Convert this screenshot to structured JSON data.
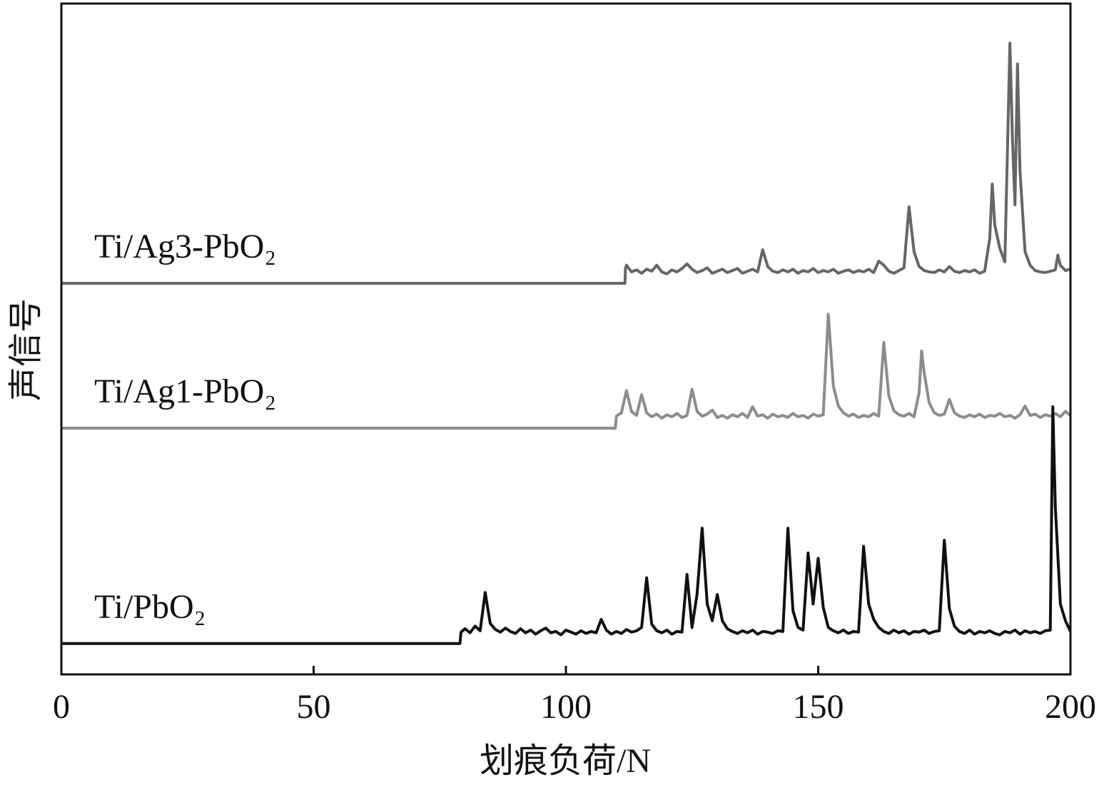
{
  "chart_data": {
    "type": "line",
    "x_label": "划痕负荷/N",
    "y_label": "声信号",
    "xlim": [
      0,
      200
    ],
    "xticks": [
      0,
      50,
      100,
      150,
      200
    ],
    "ylim": [
      0,
      100
    ],
    "series": [
      {
        "name": "Ti/Ag3-PbO₂",
        "color": "#666666",
        "x": [
          0,
          111.7,
          111.8,
          112,
          113,
          114,
          115,
          116,
          117,
          118,
          119,
          120,
          121,
          122,
          123,
          124,
          125,
          126,
          127,
          128,
          129,
          130,
          131,
          132,
          133,
          134,
          135,
          136,
          137,
          138,
          139,
          140,
          141,
          142,
          143,
          144,
          145,
          146,
          147,
          148,
          149,
          150,
          151,
          152,
          153,
          154,
          155,
          156,
          157,
          158,
          159,
          160,
          161,
          162,
          163,
          164,
          165,
          166,
          167,
          168,
          169,
          170,
          171,
          172,
          173,
          174,
          175,
          176,
          177,
          178,
          179,
          180,
          181,
          182,
          183,
          184,
          184.5,
          185,
          186,
          187,
          188,
          188.5,
          189,
          189.5,
          190,
          191,
          192,
          193,
          194,
          195,
          196,
          197,
          197.5,
          198,
          199,
          200
        ],
        "values": [
          58.3,
          58.3,
          60.5,
          61.0,
          60.0,
          60.3,
          59.8,
          60.4,
          60.1,
          61.0,
          60.0,
          59.7,
          60.3,
          60.0,
          60.5,
          61.2,
          60.4,
          59.9,
          60.2,
          60.6,
          59.8,
          60.1,
          60.4,
          59.9,
          60.2,
          60.5,
          59.8,
          60.1,
          60.4,
          60.0,
          63.3,
          60.8,
          60.1,
          59.9,
          60.3,
          60.0,
          60.4,
          59.8,
          60.2,
          60.0,
          60.5,
          59.9,
          60.2,
          60.0,
          60.4,
          59.8,
          60.1,
          60.3,
          59.9,
          60.2,
          60.0,
          60.4,
          59.9,
          61.6,
          61.0,
          60.1,
          59.8,
          60.2,
          60.6,
          69.7,
          63.0,
          60.8,
          60.2,
          60.0,
          59.9,
          60.3,
          60.0,
          60.8,
          60.1,
          59.9,
          60.2,
          60.0,
          60.3,
          59.8,
          60.1,
          65,
          73.1,
          67,
          63.5,
          61.5,
          94.1,
          80,
          70,
          91,
          75,
          63,
          61.0,
          60.2,
          60.0,
          59.9,
          60.1,
          60.3,
          62.5,
          61.0,
          60.2,
          60.4
        ]
      },
      {
        "name": "Ti/Ag1-PbO₂",
        "color": "#8c8c8c",
        "x": [
          0,
          109.8,
          110,
          111,
          112,
          113,
          114,
          115,
          116,
          117,
          118,
          119,
          120,
          121,
          122,
          123,
          124,
          125,
          126,
          127,
          128,
          129,
          130,
          131,
          132,
          133,
          134,
          135,
          136,
          137,
          138,
          139,
          140,
          141,
          142,
          143,
          144,
          145,
          146,
          147,
          148,
          149,
          150,
          151,
          152,
          153,
          154,
          155,
          156,
          157,
          158,
          159,
          160,
          161,
          162,
          163,
          164,
          165,
          166,
          167,
          168,
          169,
          170,
          170.5,
          171,
          172,
          173,
          174,
          175,
          176,
          177,
          178,
          179,
          180,
          181,
          182,
          183,
          184,
          185,
          186,
          187,
          188,
          189,
          190,
          191,
          192,
          193,
          194,
          195,
          196,
          197,
          198,
          199,
          200
        ],
        "values": [
          36.7,
          36.7,
          38.5,
          39.0,
          42.3,
          39.2,
          38.6,
          41.7,
          39.0,
          38.4,
          38.8,
          38.2,
          38.7,
          38.4,
          38.9,
          38.3,
          38.6,
          42.5,
          39.2,
          38.5,
          38.8,
          39.4,
          38.3,
          38.6,
          38.2,
          38.7,
          38.4,
          38.9,
          38.3,
          39.9,
          38.5,
          38.7,
          38.2,
          38.8,
          38.4,
          38.6,
          38.3,
          38.9,
          38.4,
          38.6,
          38.2,
          38.8,
          38.5,
          38.7,
          53.7,
          43.0,
          40.0,
          39.0,
          38.5,
          38.8,
          38.3,
          38.6,
          38.4,
          38.9,
          38.5,
          49.5,
          41.5,
          39.3,
          38.7,
          38.5,
          38.9,
          38.4,
          42,
          48.2,
          45,
          40.5,
          39.0,
          38.6,
          38.8,
          41.0,
          39.0,
          38.5,
          38.3,
          38.7,
          38.4,
          38.8,
          38.3,
          38.6,
          38.5,
          38.9,
          38.4,
          38.6,
          38.2,
          38.7,
          40.0,
          38.6,
          38.8,
          38.3,
          38.7,
          38.5,
          38.9,
          38.4,
          39.2,
          38.6
        ]
      },
      {
        "name": "Ti/PbO₂",
        "color": "#111111",
        "x": [
          0,
          79,
          79.2,
          80,
          81,
          82,
          83,
          84,
          85,
          86,
          87,
          88,
          89,
          90,
          91,
          92,
          93,
          94,
          95,
          96,
          97,
          98,
          99,
          100,
          101,
          102,
          103,
          104,
          105,
          106,
          107,
          108,
          109,
          110,
          111,
          112,
          113,
          114,
          115,
          116,
          117,
          118,
          119,
          120,
          121,
          122,
          123,
          124,
          125,
          126,
          127,
          128,
          129,
          130,
          131,
          132,
          133,
          134,
          135,
          136,
          137,
          138,
          139,
          140,
          141,
          142,
          143,
          144,
          145,
          146,
          147,
          148,
          149,
          150,
          151,
          152,
          153,
          154,
          155,
          156,
          157,
          158,
          159,
          160,
          161,
          162,
          163,
          164,
          165,
          166,
          167,
          168,
          169,
          170,
          171,
          172,
          173,
          174,
          175,
          176,
          177,
          178,
          179,
          180,
          181,
          182,
          183,
          184,
          185,
          186,
          187,
          188,
          189,
          190,
          191,
          192,
          193,
          194,
          195,
          196,
          196.5,
          197,
          198,
          199,
          200
        ],
        "values": [
          4.6,
          4.6,
          6.3,
          6.8,
          6.2,
          7.2,
          6.5,
          12.2,
          7.6,
          6.7,
          6.3,
          6.9,
          6.4,
          6.1,
          6.8,
          6.2,
          6.6,
          6.0,
          6.5,
          6.9,
          6.2,
          6.4,
          5.9,
          6.6,
          6.3,
          6.0,
          6.5,
          6.1,
          6.4,
          6.2,
          8.2,
          6.6,
          6.0,
          6.4,
          6.1,
          6.7,
          6.3,
          6.5,
          7.0,
          14.4,
          7.5,
          6.5,
          6.2,
          6.6,
          6.0,
          6.4,
          6.3,
          14.9,
          7.0,
          12,
          21.8,
          10.5,
          8.0,
          11.9,
          8.0,
          6.8,
          6.4,
          6.1,
          6.5,
          6.2,
          6.6,
          6.0,
          6.4,
          6.3,
          6.1,
          6.5,
          6.4,
          21.8,
          9.5,
          7.0,
          6.6,
          18.1,
          10.5,
          17.3,
          10.0,
          7.0,
          6.5,
          6.2,
          6.6,
          6.1,
          6.4,
          6.3,
          19.1,
          10.5,
          8.2,
          7.0,
          6.4,
          6.1,
          6.6,
          6.2,
          6.5,
          6.0,
          6.4,
          6.3,
          6.6,
          6.1,
          6.4,
          6.5,
          20.0,
          9.8,
          7.2,
          6.4,
          6.1,
          6.6,
          6.0,
          6.4,
          6.2,
          6.5,
          6.1,
          5.9,
          6.4,
          6.2,
          6.6,
          6.0,
          6.5,
          6.2,
          6.4,
          6.1,
          6.5,
          6.6,
          39.9,
          25,
          10.5,
          8.0,
          6.4
        ]
      }
    ]
  }
}
